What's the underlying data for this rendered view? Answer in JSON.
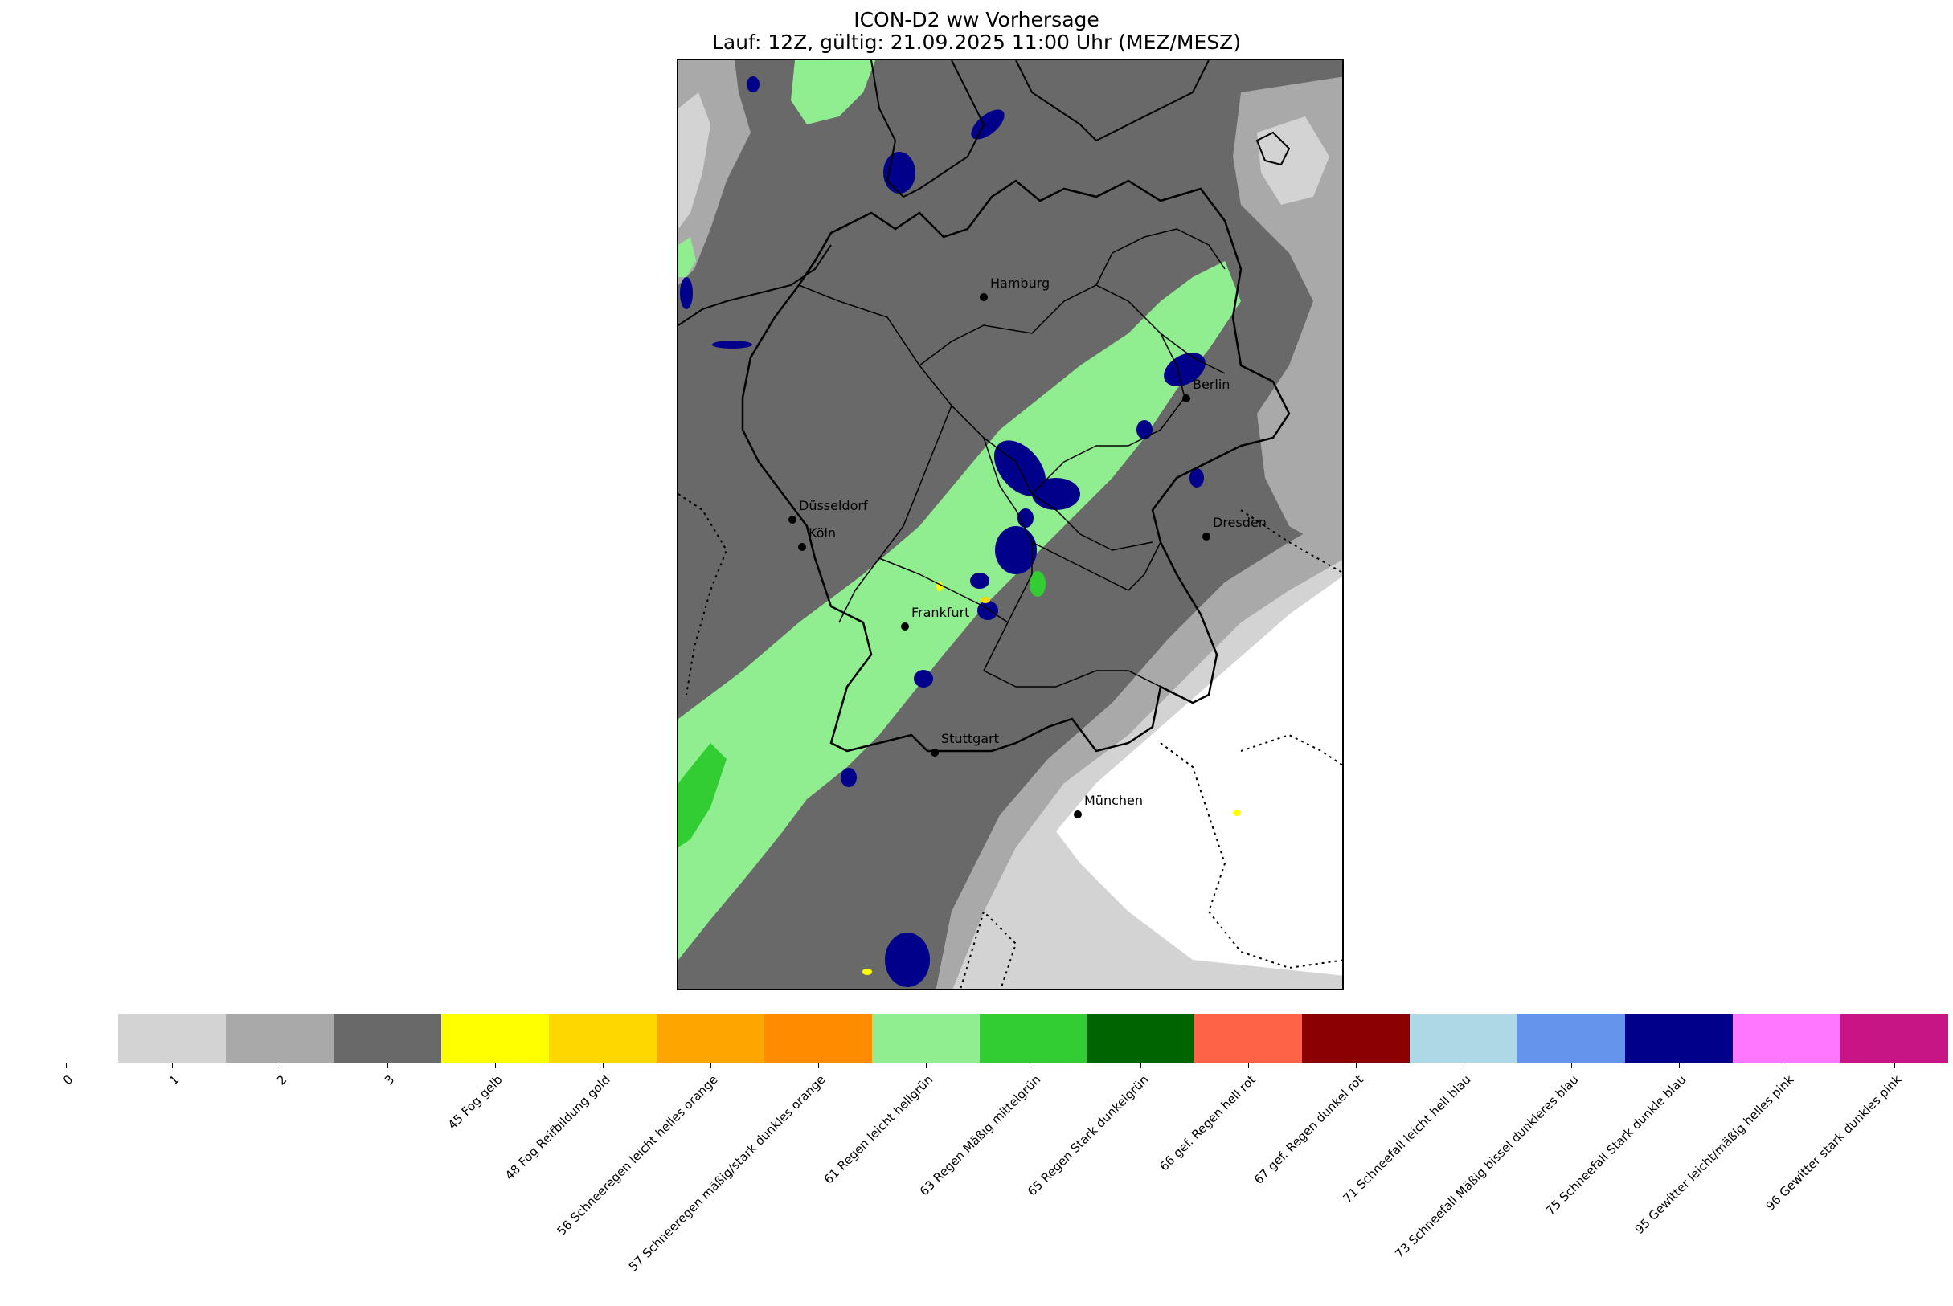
{
  "header": {
    "title": "ICON-D2 ww Vorhersage",
    "subtitle": "Lauf: 12Z, gültig: 21.09.2025 11:00 Uhr (MEZ/MESZ)"
  },
  "map": {
    "region": "Deutschland",
    "cities": [
      {
        "key": "hamburg",
        "name": "Hamburg"
      },
      {
        "key": "berlin",
        "name": "Berlin"
      },
      {
        "key": "duesseldorf",
        "name": "Düsseldorf"
      },
      {
        "key": "koeln",
        "name": "Köln"
      },
      {
        "key": "dresden",
        "name": "Dresden"
      },
      {
        "key": "frankfurt",
        "name": "Frankfurt"
      },
      {
        "key": "stuttgart",
        "name": "Stuttgart"
      },
      {
        "key": "muenchen",
        "name": "München"
      }
    ]
  },
  "colorbar": {
    "categories": [
      {
        "label": "0",
        "color": null
      },
      {
        "label": "1",
        "color": "#d3d3d3"
      },
      {
        "label": "2",
        "color": "#a9a9a9"
      },
      {
        "label": "3",
        "color": "#696969"
      },
      {
        "label": "45 Fog gelb",
        "color": "#ffff00"
      },
      {
        "label": "48 Fog Reifbildung gold",
        "color": "#ffd700"
      },
      {
        "label": "56 Schneeregen leicht helles orange",
        "color": "#ffa500"
      },
      {
        "label": "57 Schneeregen mäßig/stark dunkles orange",
        "color": "#ff8c00"
      },
      {
        "label": "61 Regen leicht hellgrün",
        "color": "#90ee90"
      },
      {
        "label": "63 Regen Mäßig mittelgrün",
        "color": "#32cd32"
      },
      {
        "label": "65 Regen Stark dunkelgrün",
        "color": "#006400"
      },
      {
        "label": "66 gef. Regen hell rot",
        "color": "#ff6347"
      },
      {
        "label": "67 gef. Regen dunkel rot",
        "color": "#8b0000"
      },
      {
        "label": "71 Schneefall leicht hell blau",
        "color": "#add8e6"
      },
      {
        "label": "73 Schneefall Mäßig bissel dunkleres blau",
        "color": "#6495ed"
      },
      {
        "label": "75 Schneefall Stark dunkle blau",
        "color": "#00008b"
      },
      {
        "label": "95 Gewitter leicht/mäßig helles pink",
        "color": "#ff77ff"
      },
      {
        "label": "96 Gewitter stark dunkles pink",
        "color": "#c71585"
      }
    ]
  }
}
